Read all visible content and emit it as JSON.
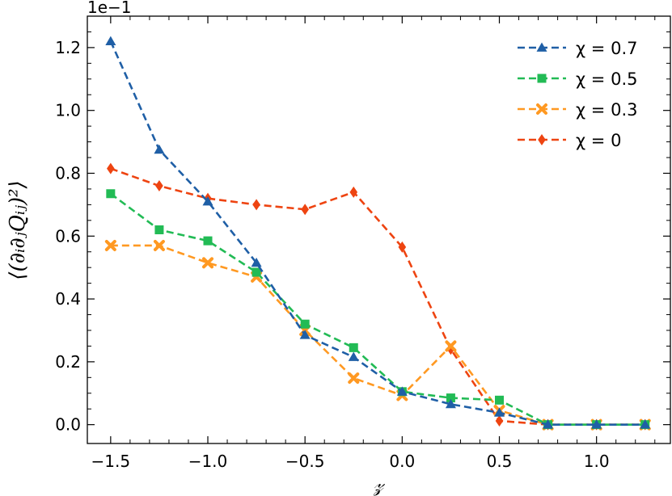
{
  "chart_data": {
    "type": "line",
    "x": [
      -1.5,
      -1.25,
      -1.0,
      -0.75,
      -0.5,
      -0.25,
      0.0,
      0.25,
      0.5,
      0.75,
      1.0,
      1.25
    ],
    "xlabel": "𝓏",
    "ylabel": "⟨(∂ᵢ∂ⱼQᵢⱼ)²⟩",
    "y_offset_label": "1e−1",
    "xlim": [
      -1.62,
      1.38
    ],
    "ylim": [
      -0.06,
      1.3
    ],
    "xticks": [
      -1.5,
      -1.0,
      -0.5,
      0.0,
      0.5,
      1.0
    ],
    "xtick_labels": [
      "−1.5",
      "−1.0",
      "−0.5",
      "0.0",
      "0.5",
      "1.0"
    ],
    "yticks": [
      0.0,
      0.2,
      0.4,
      0.6,
      0.8,
      1.0,
      1.2
    ],
    "ytick_labels": [
      "0.0",
      "0.2",
      "0.4",
      "0.6",
      "0.8",
      "1.0",
      "1.2"
    ],
    "legend_position": "top-right",
    "grid": false,
    "series": [
      {
        "name": "χ = 0.7",
        "color": "#1f5fa6",
        "marker": "triangle",
        "values": [
          1.22,
          0.875,
          0.71,
          0.515,
          0.285,
          0.215,
          0.105,
          0.065,
          0.038,
          0.0,
          0.0,
          0.0
        ]
      },
      {
        "name": "χ = 0.5",
        "color": "#22bb55",
        "marker": "square",
        "values": [
          0.735,
          0.62,
          0.585,
          0.485,
          0.32,
          0.245,
          0.105,
          0.085,
          0.078,
          0.0,
          0.0,
          0.0
        ]
      },
      {
        "name": "χ = 0.3",
        "color": "#ff9922",
        "marker": "x",
        "values": [
          0.57,
          0.57,
          0.515,
          0.47,
          0.3,
          0.148,
          0.093,
          0.25,
          0.045,
          0.0,
          0.0,
          0.0
        ]
      },
      {
        "name": "χ = 0",
        "color": "#ee4411",
        "marker": "diamond",
        "values": [
          0.815,
          0.76,
          0.72,
          0.7,
          0.685,
          0.74,
          0.565,
          0.24,
          0.012,
          0.0,
          0.0,
          0.0
        ]
      }
    ]
  }
}
